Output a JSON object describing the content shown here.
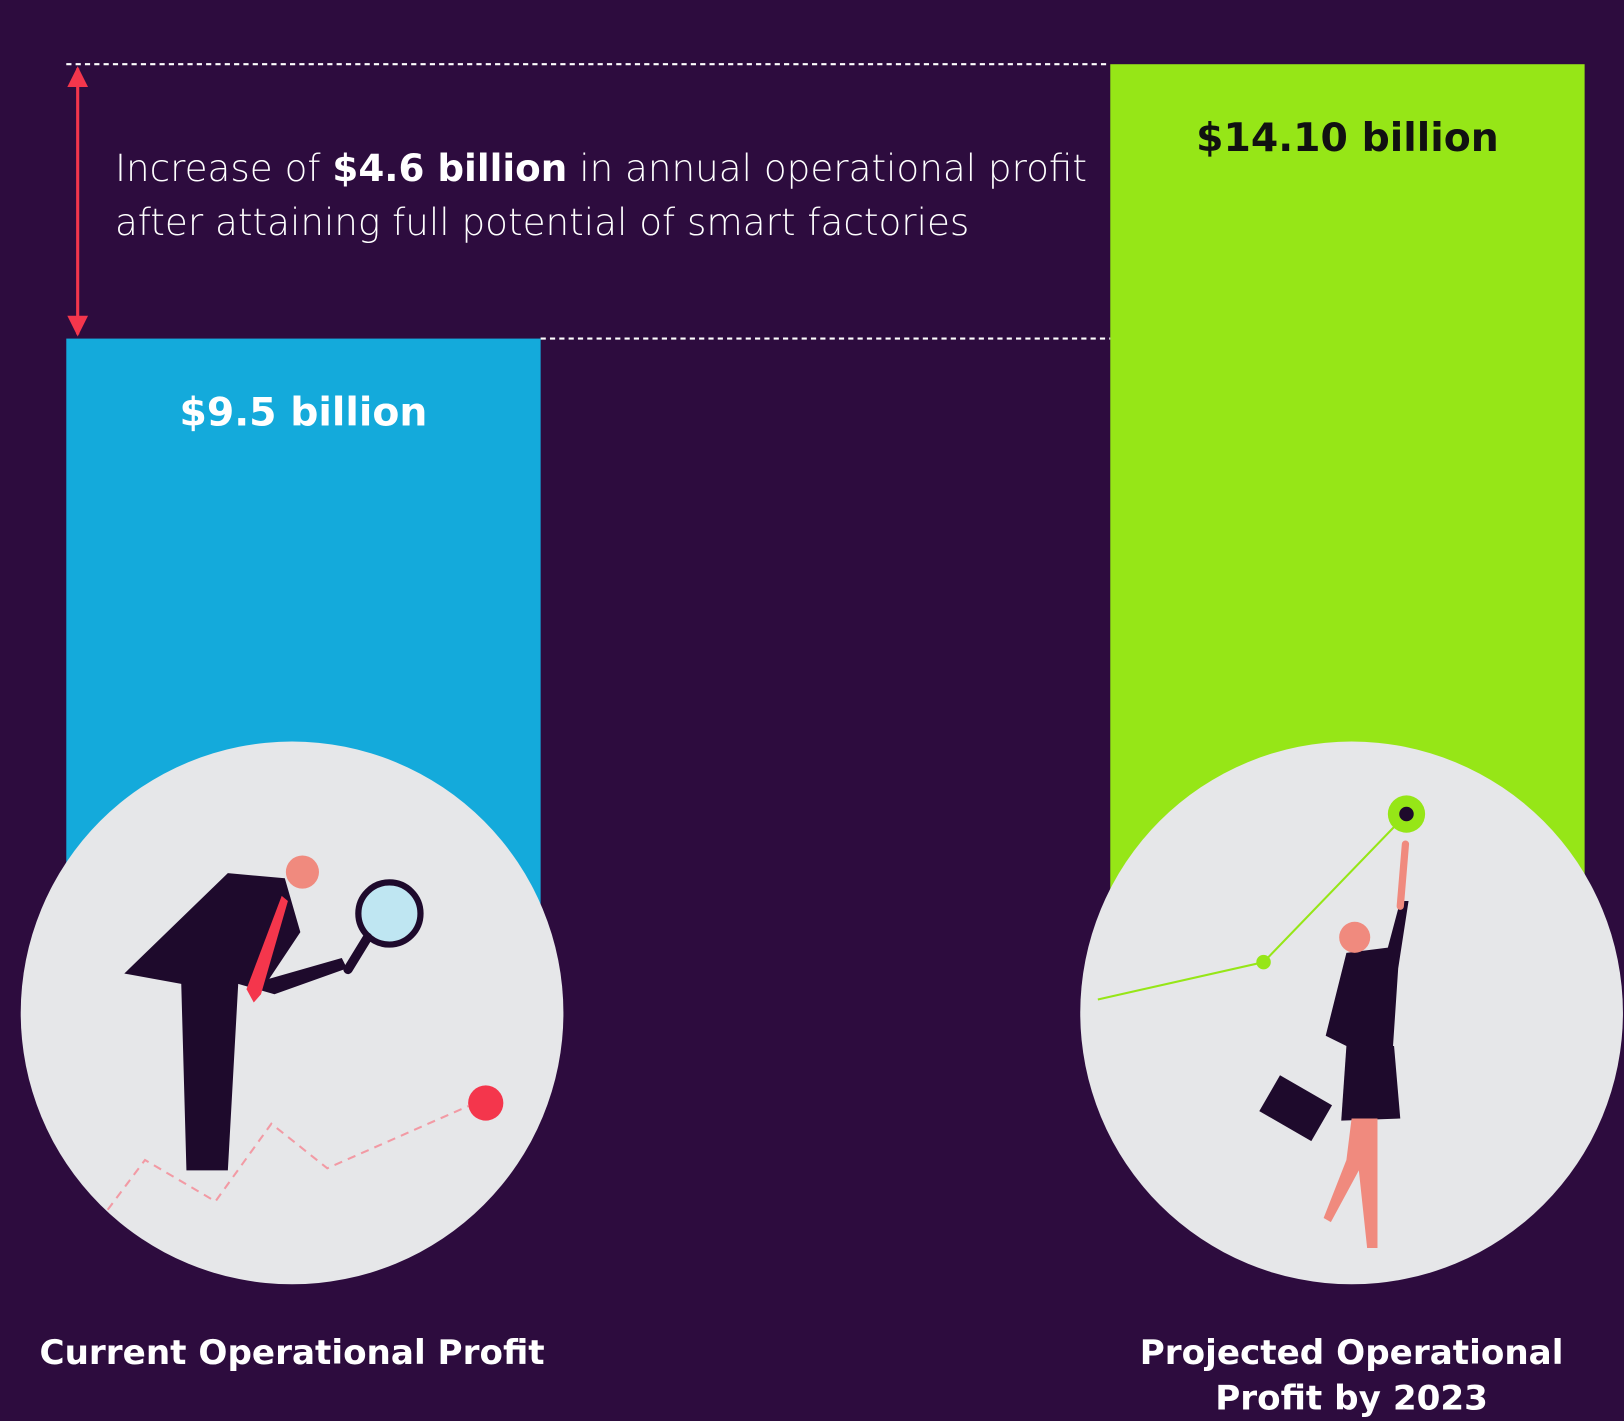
{
  "chart_data": {
    "type": "bar",
    "annotation": {
      "prefix": "Increase of ",
      "highlight": "$4.6 billion",
      "suffix": " in annual operational profit after attaining full potential of smart factories"
    },
    "categories": [
      "Current Operational Profit",
      "Projected Operational Profit by 2023"
    ],
    "values": [
      9.5,
      14.1
    ],
    "value_labels": [
      "$9.5 billion",
      "$14.10 billion"
    ],
    "colors": [
      "#14aadb",
      "#96e617"
    ],
    "label_colors": [
      "#ffffff",
      "#111111"
    ]
  }
}
